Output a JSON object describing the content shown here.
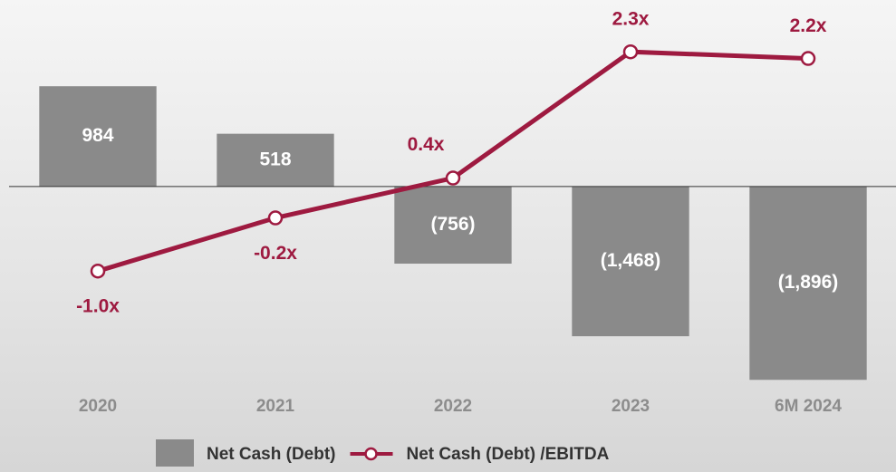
{
  "chart_data": {
    "type": "combo",
    "categories": [
      "2020",
      "2021",
      "2022",
      "2023",
      "6M 2024"
    ],
    "series": [
      {
        "name": "Net Cash (Debt)",
        "type": "bar",
        "color": "#8a8a8a",
        "values": [
          984,
          518,
          -756,
          -1468,
          -1896
        ],
        "value_labels": [
          "984",
          "518",
          "(756)",
          "(1,468)",
          "(1,896)"
        ]
      },
      {
        "name": "Net Cash (Debt) /EBITDA",
        "type": "line",
        "axis": "y2",
        "color": "#9e1a40",
        "values": [
          -1.0,
          -0.2,
          0.4,
          2.3,
          2.2
        ],
        "value_labels": [
          "-1.0x",
          "-0.2x",
          "0.4x",
          "2.3x",
          "2.2x"
        ]
      }
    ],
    "ylim": [
      -2080,
      1830
    ],
    "y2lim": [
      -2.92,
      3.08
    ],
    "legend": "bottom"
  }
}
